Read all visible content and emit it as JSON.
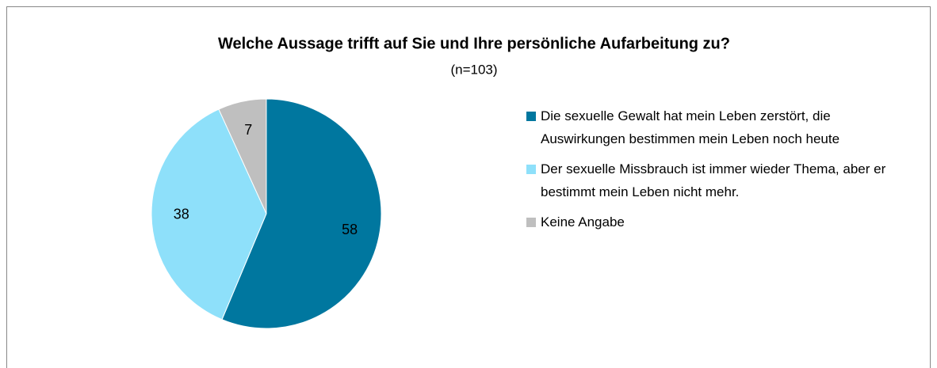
{
  "chart_data": {
    "type": "pie",
    "title": "Welche Aussage trifft auf Sie und Ihre persönliche Aufarbeitung zu?",
    "subtitle": "(n=103)",
    "categories": [
      "Die sexuelle Gewalt hat mein Leben zerstört, die Auswirkungen bestimmen mein Leben noch heute",
      "Der sexuelle Missbrauch ist immer wieder Thema, aber er bestimmt mein Leben nicht mehr.",
      "Keine Angabe"
    ],
    "values": [
      58,
      38,
      7
    ],
    "colors": [
      "#00779f",
      "#8ee0fa",
      "#bfbfbf"
    ],
    "legend": "right"
  }
}
